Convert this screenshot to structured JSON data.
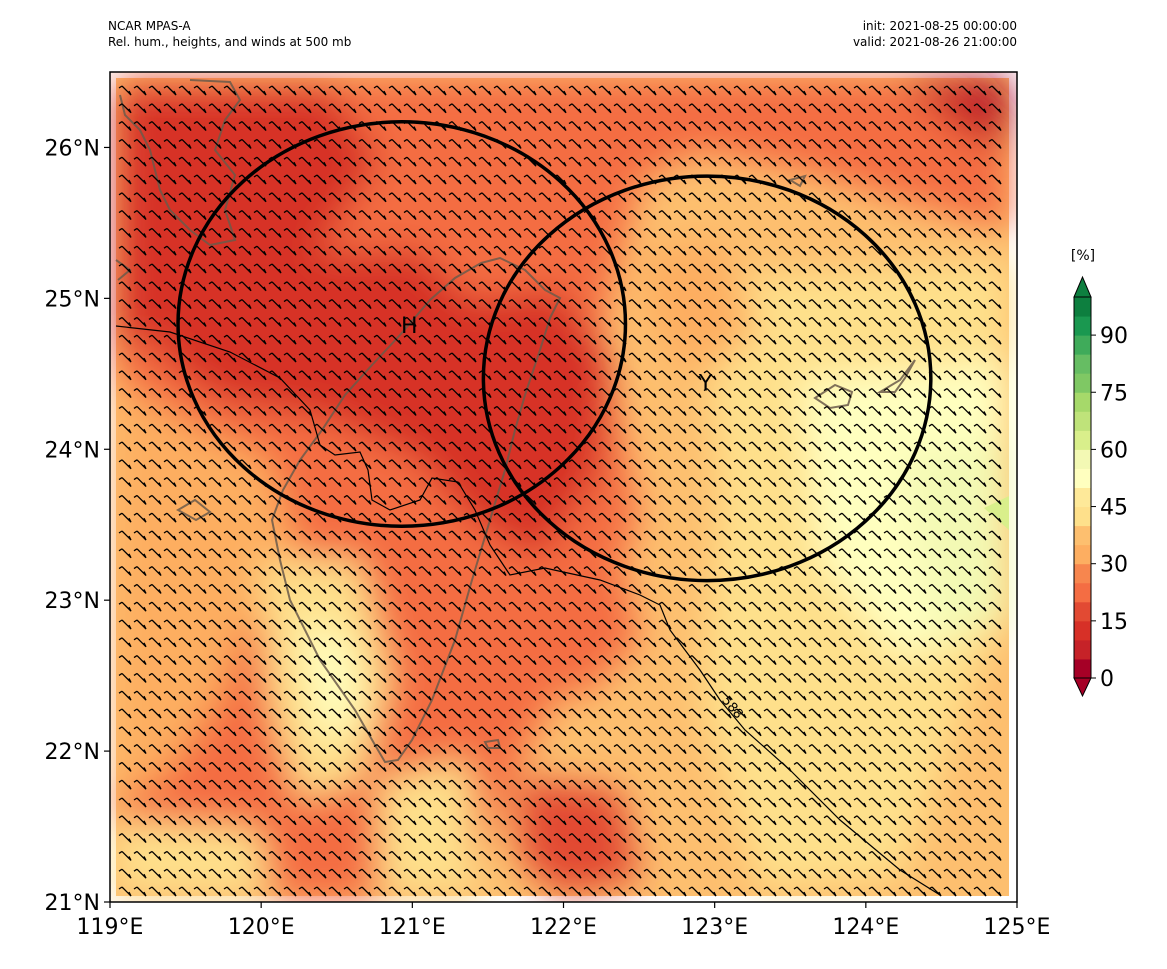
{
  "header": {
    "model": "NCAR MPAS-A",
    "field": "Rel. hum., heights, and winds at 500 mb",
    "init": "init: 2021-08-25 00:00:00",
    "valid": "valid: 2021-08-26 21:00:00"
  },
  "map": {
    "extent": {
      "lon": [
        119,
        125
      ],
      "lat": [
        21,
        26.5
      ]
    },
    "lon_ticks": [
      "119°E",
      "120°E",
      "121°E",
      "122°E",
      "123°E",
      "124°E",
      "125°E"
    ],
    "lat_ticks": [
      "21°N",
      "22°N",
      "23°N",
      "24°N",
      "25°N",
      "26°N"
    ],
    "markers": [
      {
        "label": "H",
        "lon": 120.98,
        "lat": 24.83
      },
      {
        "label": "Y",
        "lon": 122.94,
        "lat": 24.45
      }
    ],
    "circles": [
      {
        "center_lon": 120.93,
        "center_lat": 24.83,
        "radius_lon": 1.48,
        "radius_lat": 1.34
      },
      {
        "center_lon": 122.95,
        "center_lat": 24.47,
        "radius_lon": 1.48,
        "radius_lat": 1.34
      }
    ],
    "contour_label": "588",
    "barb_color": "#000000",
    "coast_color": "#6b5a4a"
  },
  "colorbar": {
    "units": "[%]",
    "ticks": [
      "0",
      "15",
      "30",
      "45",
      "60",
      "75",
      "90"
    ],
    "tick_values": [
      0,
      15,
      30,
      45,
      60,
      75,
      90
    ],
    "range": [
      0,
      100
    ],
    "colors": [
      "#a50026",
      "#c62228",
      "#d73027",
      "#e24a33",
      "#f46d43",
      "#f7864e",
      "#fdae61",
      "#fdbf6f",
      "#fee08b",
      "#fee999",
      "#ffffbf",
      "#f3f9b4",
      "#d9ef8b",
      "#bfe37a",
      "#a6d96a",
      "#7fc864",
      "#66bd63",
      "#3fab5a",
      "#1a9850",
      "#0d7f3f"
    ]
  }
}
